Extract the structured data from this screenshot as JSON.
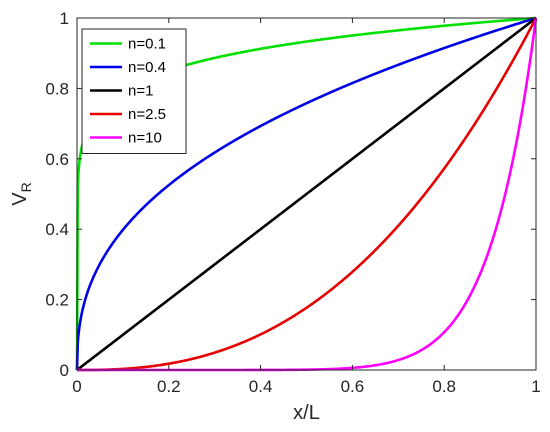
{
  "chart_data": {
    "type": "line",
    "xlabel": "x/L",
    "ylabel_main": "V",
    "ylabel_sub": "R",
    "xlim": [
      0,
      1
    ],
    "ylim": [
      0,
      1
    ],
    "xticks": [
      "0",
      "0.2",
      "0.4",
      "0.6",
      "0.8",
      "1"
    ],
    "yticks": [
      "0",
      "0.2",
      "0.4",
      "0.6",
      "0.8",
      "1"
    ],
    "grid": false,
    "legend_position": "top-left",
    "series": [
      {
        "name": "n=0.1",
        "exponent": 0.1,
        "color": "#00e000"
      },
      {
        "name": "n=0.4",
        "exponent": 0.4,
        "color": "#0000e6"
      },
      {
        "name": "n=1",
        "exponent": 1,
        "color": "#000000"
      },
      {
        "name": "n=2.5",
        "exponent": 2.5,
        "color": "#e60000"
      },
      {
        "name": "n=10",
        "exponent": 10,
        "color": "#ff00ff"
      }
    ]
  }
}
